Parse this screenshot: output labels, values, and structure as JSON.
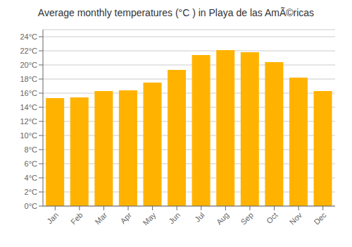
{
  "chart_data": {
    "type": "bar",
    "title": "Average monthly temperatures (°C ) in Playa de las AmÃ©ricas",
    "categories": [
      "Jan",
      "Feb",
      "Mar",
      "Apr",
      "May",
      "Jun",
      "Jul",
      "Aug",
      "Sep",
      "Oct",
      "Nov",
      "Dec"
    ],
    "values": [
      15.3,
      15.4,
      16.3,
      16.4,
      17.5,
      19.3,
      21.4,
      22.1,
      21.8,
      20.4,
      18.2,
      16.3
    ],
    "color": "#FFB300",
    "ylim": [
      0,
      25
    ],
    "yticks": [
      {
        "value": 0,
        "label": "0°C"
      },
      {
        "value": 2,
        "label": "2°C"
      },
      {
        "value": 4,
        "label": "4°C"
      },
      {
        "value": 6,
        "label": "6°C"
      },
      {
        "value": 8,
        "label": "8°C"
      },
      {
        "value": 10,
        "label": "10°C"
      },
      {
        "value": 12,
        "label": "12°C"
      },
      {
        "value": 14,
        "label": "14°C"
      },
      {
        "value": 16,
        "label": "16°C"
      },
      {
        "value": 18,
        "label": "18°C"
      },
      {
        "value": 20,
        "label": "20°C"
      },
      {
        "value": 22,
        "label": "22°C"
      },
      {
        "value": 24,
        "label": "24°C"
      }
    ],
    "grid": true
  }
}
